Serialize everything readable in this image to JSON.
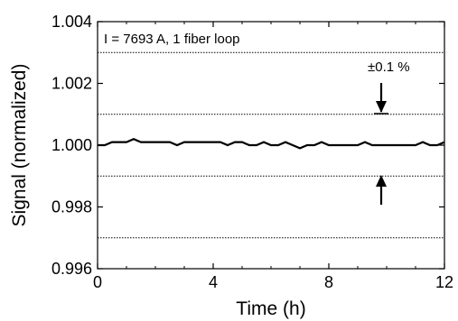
{
  "chart_data": {
    "type": "line",
    "title": "",
    "xlabel": "Time (h)",
    "ylabel": "Signal (normalized)",
    "xlim": [
      0,
      12
    ],
    "ylim": [
      0.996,
      1.004
    ],
    "x_ticks": [
      "0",
      "4",
      "8",
      "12"
    ],
    "y_ticks": [
      "0.996",
      "0.998",
      "1.000",
      "1.002",
      "1.004"
    ],
    "reference_lines": [
      0.997,
      0.999,
      1.001,
      1.003
    ],
    "annotation": "I = 7693 A, 1 fiber loop",
    "band_label": "±0.1 %",
    "band": [
      0.999,
      1.001
    ],
    "series": [
      {
        "x": [
          0,
          0.25,
          0.5,
          0.75,
          1.0,
          1.25,
          1.5,
          1.75,
          2.0,
          2.25,
          2.5,
          2.75,
          3.0,
          3.25,
          3.5,
          3.75,
          4.0,
          4.25,
          4.5,
          4.75,
          5.0,
          5.25,
          5.5,
          5.75,
          6.0,
          6.25,
          6.5,
          6.75,
          7.0,
          7.25,
          7.5,
          7.75,
          8.0,
          8.25,
          8.5,
          8.75,
          9.0,
          9.25,
          9.5,
          9.75,
          10.0,
          10.25,
          10.5,
          10.75,
          11.0,
          11.25,
          11.5,
          11.75,
          12.0
        ],
        "y": [
          1.0,
          1.0,
          1.0001,
          1.0001,
          1.0001,
          1.0002,
          1.0001,
          1.0001,
          1.0001,
          1.0001,
          1.0001,
          1.0,
          1.0001,
          1.0001,
          1.0001,
          1.0001,
          1.0001,
          1.0001,
          1.0,
          1.0001,
          1.0001,
          1.0,
          1.0,
          1.0001,
          1.0,
          1.0,
          1.0001,
          1.0,
          0.9999,
          1.0,
          1.0,
          1.0001,
          1.0,
          1.0,
          1.0,
          1.0,
          1.0,
          1.0001,
          1.0,
          1.0,
          1.0,
          1.0,
          1.0,
          1.0,
          1.0,
          1.0001,
          1.0,
          1.0,
          1.0001
        ]
      }
    ],
    "grid": false,
    "legend": "none",
    "colors": {
      "line": "#000000",
      "reference_line": "#000000",
      "axes": "#000000"
    }
  }
}
